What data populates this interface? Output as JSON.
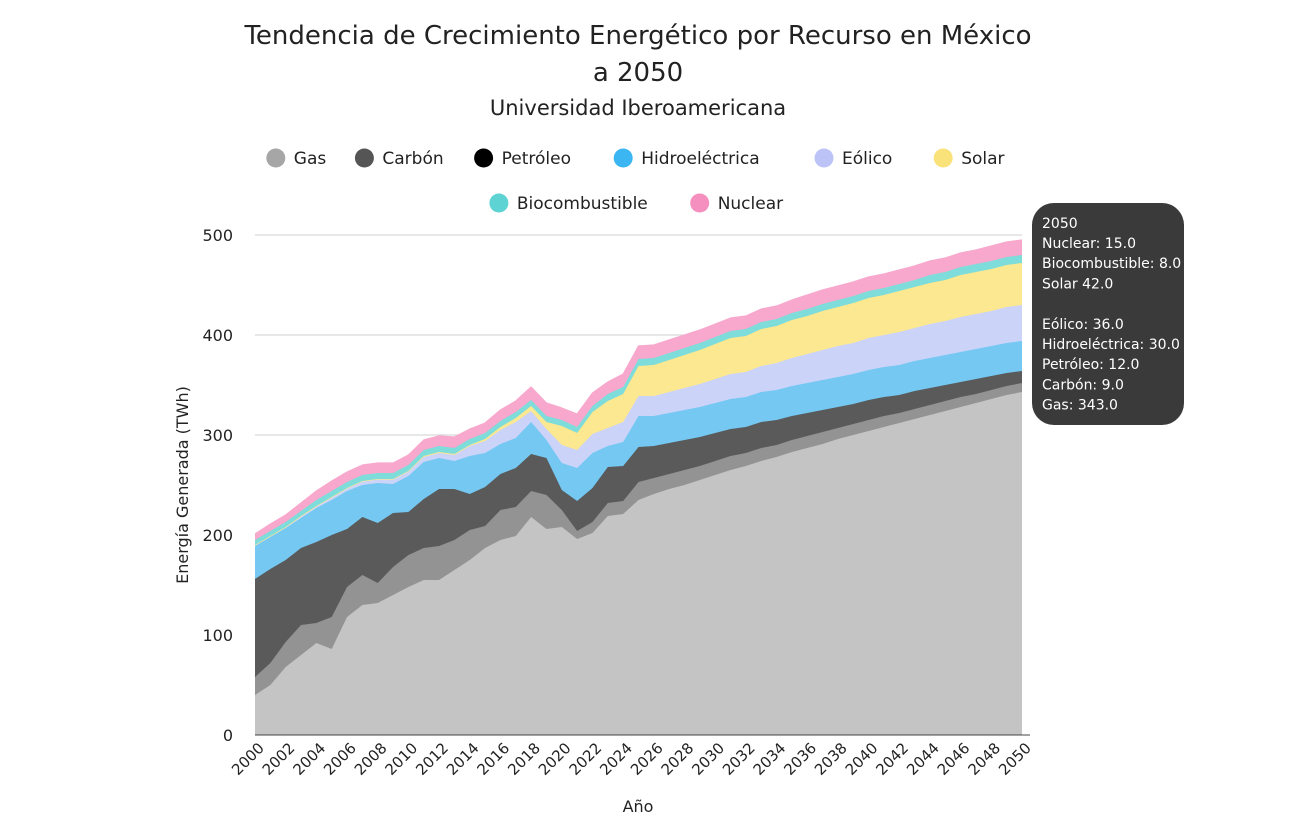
{
  "chart_data": {
    "type": "area",
    "stacked": true,
    "title": "Tendencia de Crecimiento Energético por Recurso en México",
    "title_line2": "a 2050",
    "subtitle": "Universidad Iberoamericana",
    "xlabel": "Año",
    "ylabel": "Energía Generada (TWh)",
    "ylim": [
      0,
      500
    ],
    "yticks": [
      0,
      100,
      200,
      300,
      400,
      500
    ],
    "grid": true,
    "legend_position": "top",
    "x": [
      2000,
      2001,
      2002,
      2003,
      2004,
      2005,
      2006,
      2007,
      2008,
      2009,
      2010,
      2011,
      2012,
      2013,
      2014,
      2015,
      2016,
      2017,
      2018,
      2019,
      2020,
      2021,
      2022,
      2023,
      2024,
      2025,
      2026,
      2027,
      2028,
      2029,
      2030,
      2031,
      2032,
      2033,
      2034,
      2035,
      2036,
      2037,
      2038,
      2039,
      2040,
      2041,
      2042,
      2043,
      2044,
      2045,
      2046,
      2047,
      2048,
      2049,
      2050
    ],
    "xticks": [
      "2000",
      "2002",
      "2004",
      "2006",
      "2008",
      "2010",
      "2012",
      "2014",
      "2016",
      "2018",
      "2020",
      "2022",
      "2024",
      "2026",
      "2028",
      "2030",
      "2032",
      "2034",
      "2036",
      "2038",
      "2040",
      "2042",
      "2044",
      "2046",
      "2048",
      "2050"
    ],
    "series": [
      {
        "name": "Gas",
        "color": "#A6A6A6",
        "fill": "#C4C4C4",
        "values": [
          40,
          50,
          68,
          80,
          92,
          86,
          118,
          130,
          132,
          140,
          148,
          155,
          155,
          165,
          175,
          187,
          195,
          199,
          218,
          206,
          208,
          196,
          202,
          219,
          221,
          235,
          241,
          246,
          250,
          255,
          260,
          265,
          269,
          274,
          278,
          283,
          287,
          291,
          296,
          300,
          304,
          308,
          312,
          316,
          320,
          324,
          328,
          332,
          336,
          340,
          343
        ]
      },
      {
        "name": "Carbón",
        "color": "#555555",
        "fill": "#939393",
        "values": [
          18,
          22,
          25,
          30,
          20,
          32,
          30,
          30,
          20,
          28,
          32,
          32,
          34,
          30,
          30,
          22,
          30,
          29,
          26,
          34,
          17,
          8,
          11,
          13,
          13,
          18,
          16,
          15,
          15,
          14,
          14,
          14,
          13,
          13,
          12,
          12,
          12,
          12,
          11,
          11,
          11,
          11,
          10,
          10,
          10,
          10,
          10,
          9,
          9,
          9,
          9
        ]
      },
      {
        "name": "Petróleo",
        "color": "#000000",
        "fill": "#5A5A5A",
        "values": [
          98,
          94,
          82,
          77,
          81,
          82,
          58,
          58,
          60,
          54,
          43,
          49,
          57,
          51,
          36,
          39,
          36,
          39,
          37,
          37,
          20,
          30,
          34,
          36,
          35,
          35,
          32,
          31,
          30,
          29,
          28,
          27,
          26,
          26,
          25,
          24,
          23,
          22,
          21,
          20,
          20,
          19,
          18,
          18,
          17,
          16,
          15,
          15,
          14,
          13,
          12
        ]
      },
      {
        "name": "Hidroeléctrica",
        "color": "#3BB6F2",
        "fill": "#74C8F2",
        "values": [
          33,
          32,
          32,
          30,
          34,
          35,
          38,
          32,
          40,
          29,
          36,
          37,
          31,
          28,
          38,
          34,
          30,
          30,
          32,
          18,
          27,
          33,
          35,
          21,
          24,
          31,
          30,
          30,
          30,
          30,
          30,
          30,
          30,
          30,
          30,
          30,
          30,
          30,
          30,
          30,
          30,
          30,
          30,
          30,
          30,
          30,
          30,
          30,
          30,
          30,
          30
        ]
      },
      {
        "name": "Eólico",
        "color": "#BCC4F7",
        "fill": "#CCD3F9",
        "values": [
          1,
          1,
          1,
          2,
          2,
          3,
          3,
          4,
          4,
          5,
          5,
          5,
          5,
          6,
          10,
          12,
          14,
          16,
          11,
          11,
          18,
          18,
          19,
          18,
          20,
          20,
          20,
          21,
          22,
          23,
          24,
          25,
          25,
          26,
          27,
          28,
          29,
          30,
          31,
          31,
          32,
          32,
          33,
          33,
          34,
          34,
          35,
          35,
          35,
          36,
          36
        ]
      },
      {
        "name": "Solar",
        "color": "#FAE27A",
        "fill": "#FCE890",
        "values": [
          0,
          0,
          0,
          0,
          0,
          0,
          0,
          0,
          0,
          0,
          0,
          1,
          1,
          1,
          1,
          2,
          3,
          4,
          5,
          7,
          19,
          17,
          22,
          27,
          28,
          30,
          31,
          32,
          33,
          34,
          35,
          36,
          36,
          37,
          37,
          38,
          38,
          39,
          39,
          40,
          40,
          40,
          41,
          41,
          41,
          41,
          42,
          42,
          42,
          42,
          42
        ]
      },
      {
        "name": "Biocombustible",
        "color": "#5ED3D3",
        "fill": "#7EDCDA",
        "values": [
          5,
          5,
          5,
          5,
          6,
          6,
          6,
          6,
          6,
          6,
          6,
          6,
          6,
          6,
          6,
          6,
          6,
          6,
          6,
          6,
          6,
          6,
          6,
          7,
          7,
          7,
          7,
          7,
          7,
          7,
          7,
          7,
          7,
          7,
          7,
          7,
          7,
          7,
          7,
          7,
          7,
          7,
          7,
          7,
          8,
          8,
          8,
          8,
          8,
          8,
          8
        ]
      },
      {
        "name": "Nuclear",
        "color": "#F48FBF",
        "fill": "#F7A8CC",
        "values": [
          6,
          7,
          7,
          8,
          9,
          10,
          10,
          10,
          10,
          10,
          10,
          10,
          10,
          11,
          10,
          10,
          11,
          11,
          13,
          13,
          12,
          13,
          13,
          12,
          13,
          13,
          13,
          13,
          13,
          13,
          13,
          13,
          13,
          13,
          13,
          13,
          14,
          14,
          14,
          14,
          14,
          14,
          14,
          14,
          14,
          14,
          14,
          14,
          15,
          15,
          15
        ]
      }
    ],
    "tooltip": {
      "year": "2050",
      "lines": [
        "Nuclear: 15.0",
        "Biocombustible: 8.0",
        "Solar 42.0",
        "",
        "Eólico: 36.0",
        "Hidroeléctrica: 30.0",
        "Petróleo: 12.0",
        "Carbón: 9.0",
        "Gas: 343.0"
      ]
    }
  },
  "colors": {
    "grid": "#CFCFCF",
    "axis": "#444444",
    "tooltip_bg": "#3A3A3A"
  }
}
